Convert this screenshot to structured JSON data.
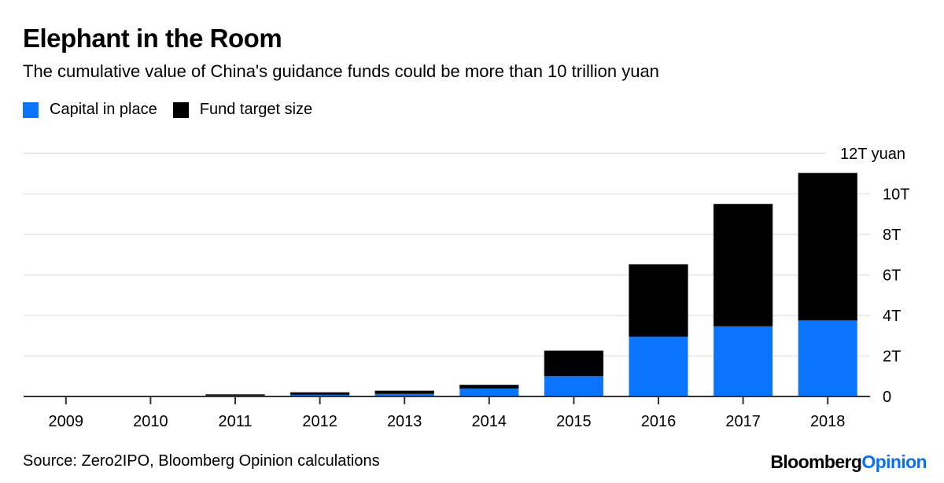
{
  "header": {
    "title": "Elephant in the Room",
    "subtitle": "The cumulative value of China's guidance funds could be more than 10 trillion yuan"
  },
  "legend": [
    {
      "label": "Capital in place",
      "color": "#0a74ff"
    },
    {
      "label": "Fund target size",
      "color": "#000000"
    }
  ],
  "footer": {
    "source": "Source: Zero2IPO, Bloomberg Opinion calculations",
    "brand_part1": "Bloomberg",
    "brand_part2": "Opinion"
  },
  "chart_data": {
    "type": "bar",
    "stacked": true,
    "title": "Elephant in the Room",
    "subtitle": "The cumulative value of China's guidance funds could be more than 10 trillion yuan",
    "xlabel": "",
    "ylabel": "",
    "unit": "trillion yuan",
    "categories": [
      "2009",
      "2010",
      "2011",
      "2012",
      "2013",
      "2014",
      "2015",
      "2016",
      "2017",
      "2018"
    ],
    "series": [
      {
        "name": "Capital in place",
        "color": "#0a74ff",
        "values": [
          0,
          0.03,
          0.06,
          0.08,
          0.13,
          0.39,
          1.0,
          2.95,
          3.46,
          3.75
        ]
      },
      {
        "name": "Fund target size",
        "color": "#000000",
        "values": [
          0,
          0,
          0.04,
          0.12,
          0.15,
          0.18,
          1.26,
          3.57,
          6.04,
          7.28
        ]
      }
    ],
    "totals": [
      0,
      0.03,
      0.1,
      0.2,
      0.28,
      0.57,
      2.26,
      6.52,
      9.5,
      11.03
    ],
    "ylim": [
      0,
      12
    ],
    "yticks": [
      0,
      2,
      4,
      6,
      8,
      10,
      12
    ],
    "ytick_labels": [
      "0",
      "2T",
      "4T",
      "6T",
      "8T",
      "10T",
      "12T yuan"
    ],
    "y_axis_side": "right",
    "grid": true,
    "legend_position": "top-left"
  }
}
